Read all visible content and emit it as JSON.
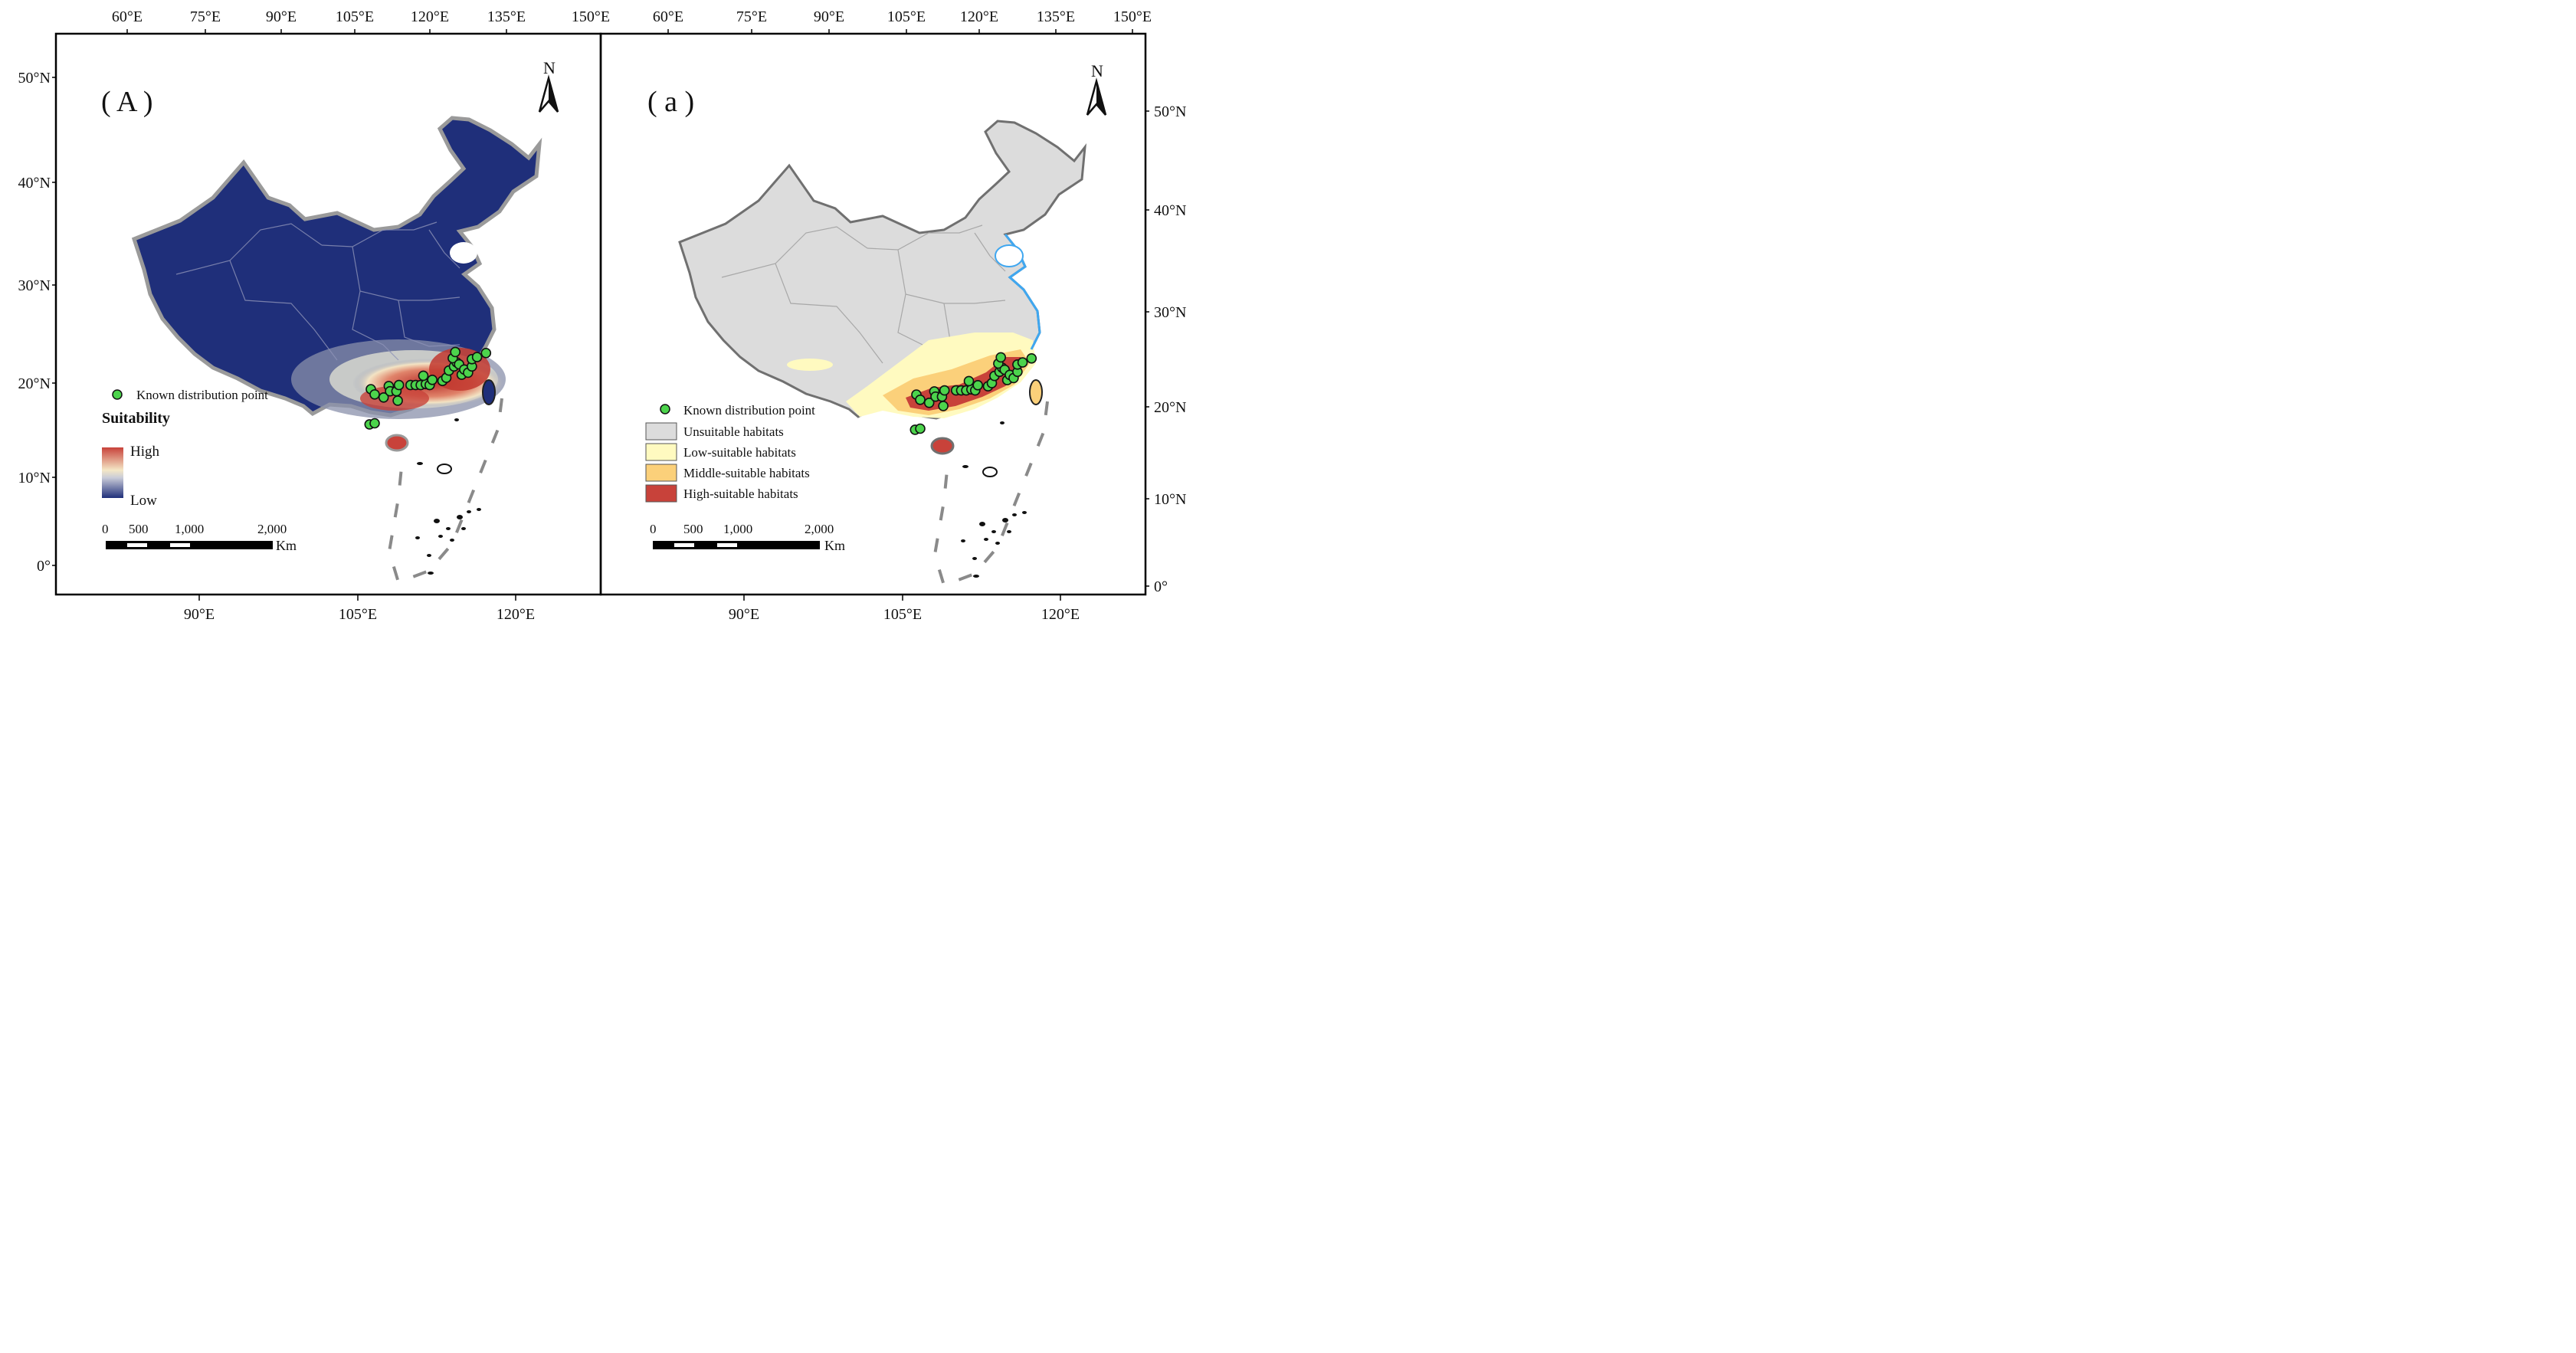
{
  "panels": [
    {
      "id": "A",
      "label": "( A )",
      "north": "N",
      "top_lon": [
        "60°E",
        "75°E",
        "90°E",
        "105°E",
        "120°E",
        "135°E",
        "150°E"
      ],
      "bottom_lon": [
        "90°E",
        "105°E",
        "120°E"
      ],
      "left_lat": [
        "50°N",
        "40°N",
        "30°N",
        "20°N",
        "10°N",
        "0°"
      ],
      "legend": {
        "point_label": "Known distribution point",
        "title": "Suitability",
        "high": "High",
        "low": "Low"
      },
      "scale": {
        "ticks": [
          "0",
          "500",
          "1,000",
          "2,000"
        ],
        "unit": "Km"
      }
    },
    {
      "id": "a",
      "label": "( a )",
      "north": "N",
      "top_lon": [
        "60°E",
        "75°E",
        "90°E",
        "105°E",
        "120°E",
        "135°E",
        "150°E"
      ],
      "bottom_lon": [
        "90°E",
        "105°E",
        "120°E"
      ],
      "right_lat": [
        "50°N",
        "40°N",
        "30°N",
        "20°N",
        "10°N",
        "0°"
      ],
      "legend": {
        "point_label": "Known distribution point",
        "classes": [
          {
            "label": "Unsuitable habitats",
            "color": "#dcdcdc"
          },
          {
            "label": "Low-suitable habitats",
            "color": "#fffac0"
          },
          {
            "label": "Middle-suitable habitats",
            "color": "#fbd07a"
          },
          {
            "label": "High-suitable habitats",
            "color": "#c8423a"
          }
        ]
      },
      "scale": {
        "ticks": [
          "0",
          "500",
          "1,000",
          "2,000"
        ],
        "unit": "Km"
      }
    }
  ],
  "colors": {
    "unsuitable_dark": "#1f2f7a",
    "ramp_high": "#c8423a",
    "ramp_mid": "#f7f2c8",
    "ramp_low": "#1f2f7a",
    "point_fill": "#4cd44c",
    "water": "#3fa7f0",
    "border": "#888888"
  },
  "known_points": [
    [
      109.2,
      21.7
    ],
    [
      109.5,
      21.2
    ],
    [
      110.2,
      20.9
    ],
    [
      110.6,
      22.0
    ],
    [
      110.7,
      21.5
    ],
    [
      111.2,
      21.5
    ],
    [
      111.4,
      22.1
    ],
    [
      111.3,
      20.6
    ],
    [
      112.3,
      22.1
    ],
    [
      112.7,
      22.1
    ],
    [
      113.1,
      22.1
    ],
    [
      113.5,
      22.2
    ],
    [
      113.3,
      23.0
    ],
    [
      113.8,
      22.1
    ],
    [
      114.0,
      22.6
    ],
    [
      114.8,
      22.5
    ],
    [
      115.1,
      22.8
    ],
    [
      115.3,
      23.5
    ],
    [
      115.7,
      23.9
    ],
    [
      115.9,
      24.3
    ],
    [
      115.6,
      24.7
    ],
    [
      115.8,
      25.3
    ],
    [
      116.1,
      24.1
    ],
    [
      116.3,
      23.1
    ],
    [
      116.5,
      23.6
    ],
    [
      116.8,
      23.3
    ],
    [
      117.1,
      23.9
    ],
    [
      117.1,
      24.6
    ],
    [
      117.5,
      24.8
    ],
    [
      118.2,
      25.2
    ],
    [
      109.1,
      18.3
    ],
    [
      109.5,
      18.4
    ]
  ]
}
